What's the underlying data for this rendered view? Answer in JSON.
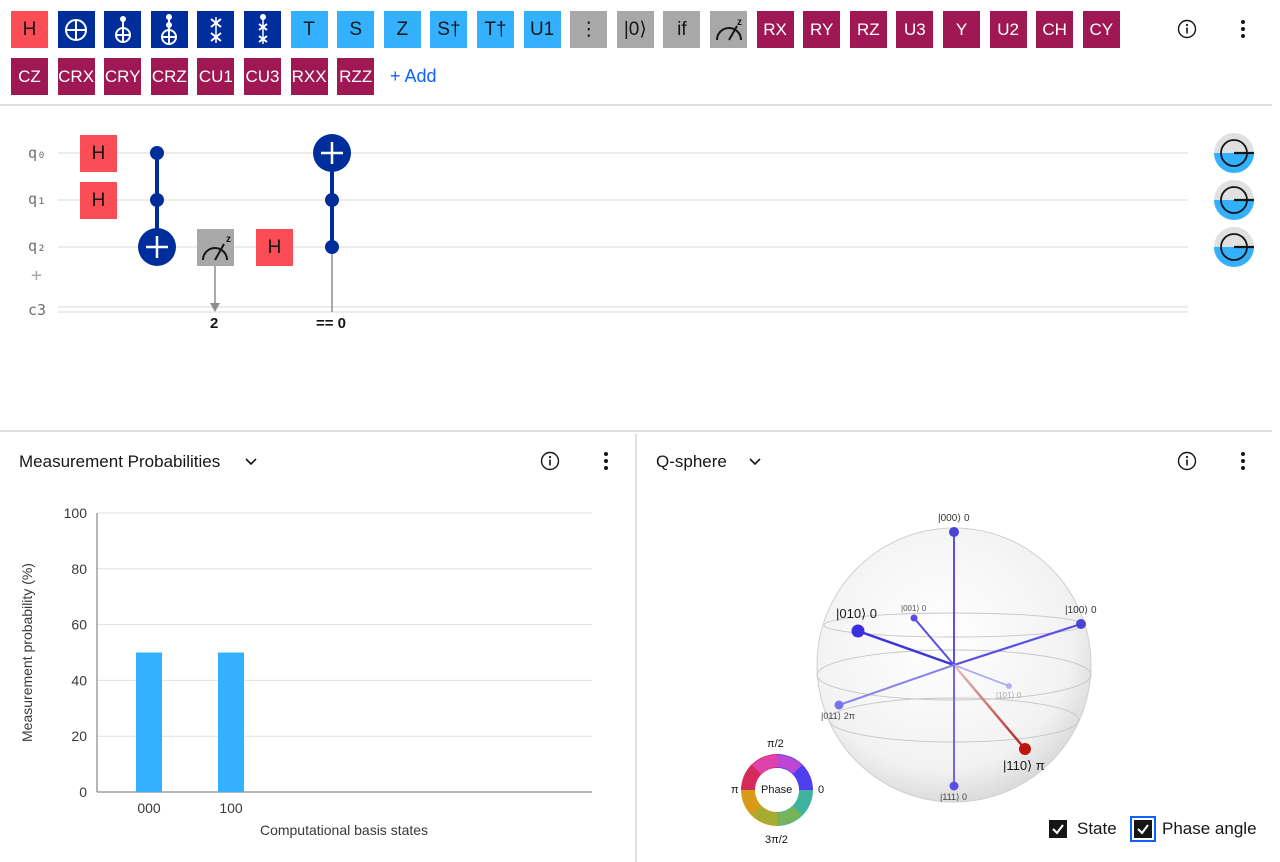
{
  "palette": {
    "row1": [
      {
        "label": "H",
        "name": "gate-h-button",
        "style": "red"
      },
      {
        "label": "",
        "name": "gate-not-button",
        "style": "navy",
        "icon": "oplus-icon"
      },
      {
        "label": "",
        "name": "gate-cnot-button",
        "style": "navy",
        "icon": "cnot-icon"
      },
      {
        "label": "",
        "name": "gate-toffoli-button",
        "style": "navy",
        "icon": "toffoli-icon"
      },
      {
        "label": "",
        "name": "gate-swap-button",
        "style": "navy",
        "icon": "swap-icon"
      },
      {
        "label": "",
        "name": "gate-cswap-button",
        "style": "navy",
        "icon": "cswap-icon"
      },
      {
        "label": "T",
        "name": "gate-t-button",
        "style": "sky"
      },
      {
        "label": "S",
        "name": "gate-s-button",
        "style": "sky"
      },
      {
        "label": "Z",
        "name": "gate-z-button",
        "style": "sky"
      },
      {
        "label": "S†",
        "name": "gate-sdg-button",
        "style": "sky"
      },
      {
        "label": "T†",
        "name": "gate-tdg-button",
        "style": "sky"
      },
      {
        "label": "U1",
        "name": "gate-u1-button",
        "style": "sky"
      },
      {
        "label": "⋮",
        "name": "gate-barrier-button",
        "style": "gray"
      },
      {
        "label": "|0⟩",
        "name": "gate-reset-button",
        "style": "gray"
      },
      {
        "label": "if",
        "name": "gate-if-button",
        "style": "gray"
      },
      {
        "label": "",
        "name": "gate-measure-button",
        "style": "gray",
        "icon": "measure-icon"
      },
      {
        "label": "RX",
        "name": "gate-rx-button",
        "style": "mag"
      },
      {
        "label": "RY",
        "name": "gate-ry-button",
        "style": "mag"
      },
      {
        "label": "RZ",
        "name": "gate-rz-button",
        "style": "mag"
      },
      {
        "label": "U3",
        "name": "gate-u3-button",
        "style": "mag"
      },
      {
        "label": "Y",
        "name": "gate-y-button",
        "style": "mag"
      },
      {
        "label": "U2",
        "name": "gate-u2-button",
        "style": "mag"
      },
      {
        "label": "CH",
        "name": "gate-ch-button",
        "style": "mag"
      },
      {
        "label": "CY",
        "name": "gate-cy-button",
        "style": "mag"
      }
    ],
    "row2": [
      {
        "label": "CZ",
        "name": "gate-cz-button",
        "style": "mag"
      },
      {
        "label": "CRX",
        "name": "gate-crx-button",
        "style": "mag"
      },
      {
        "label": "CRY",
        "name": "gate-cry-button",
        "style": "mag"
      },
      {
        "label": "CRZ",
        "name": "gate-crz-button",
        "style": "mag"
      },
      {
        "label": "CU1",
        "name": "gate-cu1-button",
        "style": "mag"
      },
      {
        "label": "CU3",
        "name": "gate-cu3-button",
        "style": "mag"
      },
      {
        "label": "RXX",
        "name": "gate-rxx-button",
        "style": "mag"
      },
      {
        "label": "RZZ",
        "name": "gate-rzz-button",
        "style": "mag"
      }
    ],
    "add_label": "+ Add"
  },
  "circuit": {
    "qubits": [
      "q₀",
      "q₁",
      "q₂"
    ],
    "add_qubit": "+",
    "classical": "c3",
    "gate_h": "H",
    "measure_bit": "2",
    "condition": "== 0"
  },
  "probabilities": {
    "title": "Measurement Probabilities",
    "ylabel": "Measurement probability (%)",
    "xlabel": "Computational basis states"
  },
  "qsphere": {
    "title": "Q-sphere",
    "phase_label": "Phase",
    "phase_top": "π/2",
    "phase_left": "π",
    "phase_right": "0",
    "phase_bottom": "3π/2",
    "state_labels": {
      "s000": "|000⟩ 0",
      "s001": "|001⟩ 0",
      "s010": "|010⟩ 0",
      "s100": "|100⟩ 0",
      "s101": "|101⟩ 0",
      "s011": "|011⟩ 2π",
      "s110": "|110⟩ π",
      "s111": "|111⟩ 0"
    },
    "state_checkbox": "State",
    "phase_checkbox": "Phase angle"
  },
  "colors": {
    "accent": "#0f62fe",
    "bar": "#33b1ff",
    "navy": "#002d9c",
    "magenta": "#9f1853",
    "red": "#fa4d56"
  },
  "chart_data": {
    "type": "bar",
    "categories": [
      "000",
      "100"
    ],
    "values": [
      50,
      50
    ],
    "xlabel": "Computational basis states",
    "ylabel": "Measurement probability (%)",
    "ylim": [
      0,
      100
    ],
    "yticks": [
      0,
      20,
      40,
      60,
      80,
      100
    ],
    "grid": true
  }
}
